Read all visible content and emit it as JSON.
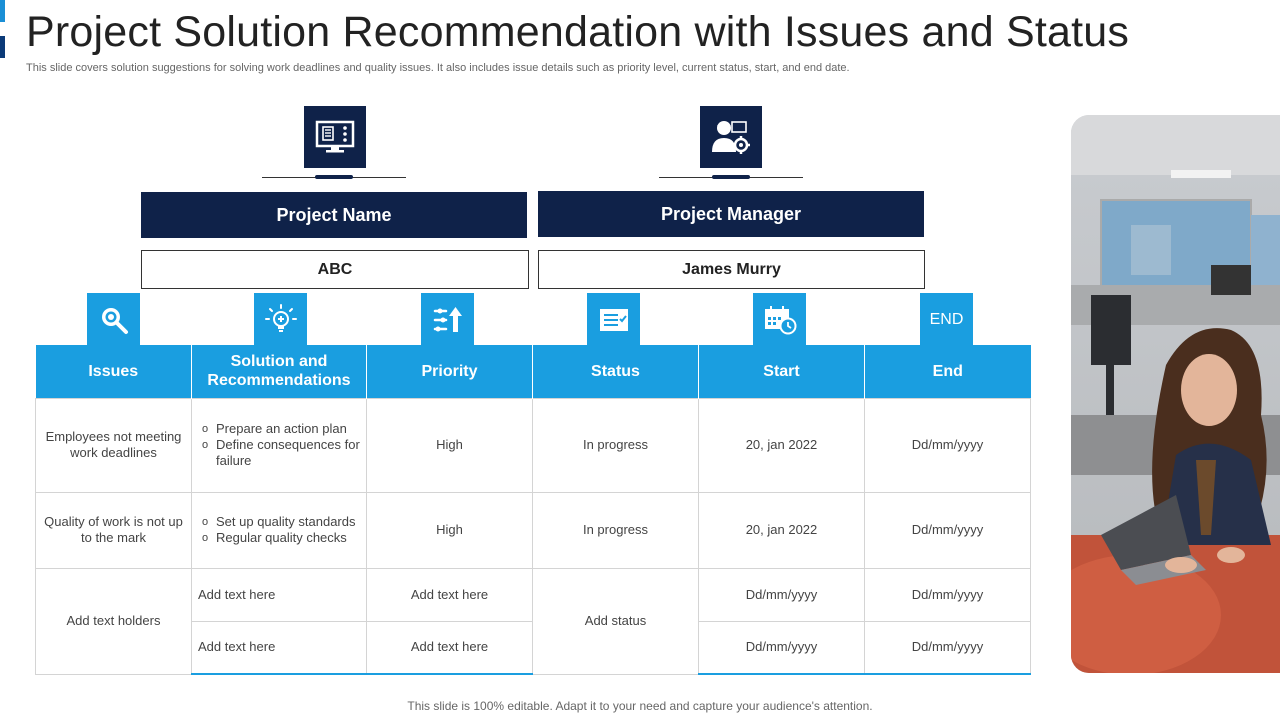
{
  "title": "Project Solution Recommendation with Issues and Status",
  "subtitle": "This slide covers solution suggestions for solving work deadlines and quality issues. It also includes issue details such as priority level, current status, start, and end date.",
  "project": {
    "name_label": "Project Name",
    "name_value": "ABC",
    "manager_label": "Project Manager",
    "manager_value": "James Murry"
  },
  "icons": {
    "project_name": "monitor-dashboard-icon",
    "project_manager": "manager-gear-icon",
    "issues": "search-icon",
    "solution": "lightbulb-icon",
    "priority": "priority-arrow-icon",
    "status": "status-list-icon",
    "start": "calendar-clock-icon",
    "end_text": "END"
  },
  "table": {
    "headers": [
      "Issues",
      "Solution and Recommendations",
      "Priority",
      "Status",
      "Start",
      "End"
    ],
    "rows": [
      {
        "issue": "Employees not meeting work deadlines",
        "solutions": [
          "Prepare an action plan",
          "Define consequences for failure"
        ],
        "priority": "High",
        "status": "In progress",
        "start": "20, jan 2022",
        "end": "Dd/mm/yyyy"
      },
      {
        "issue": "Quality of work is not up to the mark",
        "solutions": [
          "Set up quality standards",
          "Regular quality checks"
        ],
        "priority": "High",
        "status": "In progress",
        "start": "20, jan 2022",
        "end": "Dd/mm/yyyy"
      }
    ],
    "placeholder_group": {
      "issue": "Add text holders",
      "status": "Add status",
      "subrows": [
        {
          "solution": "Add text here",
          "priority": "Add text here",
          "start": "Dd/mm/yyyy",
          "end": "Dd/mm/yyyy"
        },
        {
          "solution": "Add text here",
          "priority": "Add text here",
          "start": "Dd/mm/yyyy",
          "end": "Dd/mm/yyyy"
        }
      ]
    }
  },
  "footer": "This slide is 100% editable. Adapt it to your need and capture your audience's attention.",
  "colors": {
    "navy": "#0f2249",
    "accent_blue": "#1a9ee0",
    "left_bar_blue": "#1a8fd6",
    "left_bar_dark": "#0b3a78"
  }
}
